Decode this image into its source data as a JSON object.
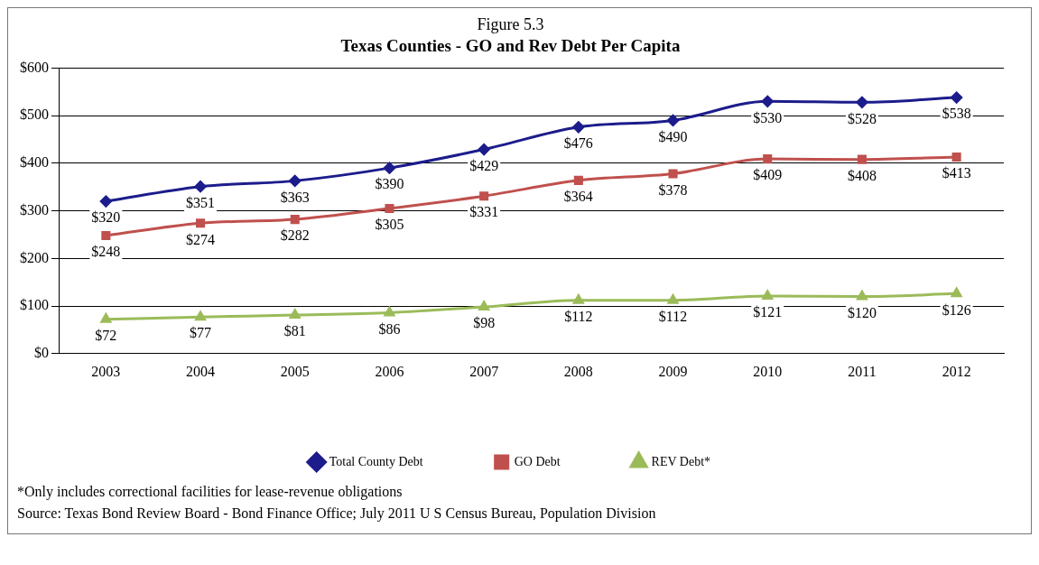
{
  "chart_data": {
    "type": "line",
    "title": "Figure 5.3",
    "subtitle": "Texas Counties - GO and Rev Debt Per Capita",
    "categories": [
      "2003",
      "2004",
      "2005",
      "2006",
      "2007",
      "2008",
      "2009",
      "2010",
      "2011",
      "2012"
    ],
    "series": [
      {
        "name": "Total County Debt",
        "color": "#1c1c8c",
        "marker": "diamond",
        "values": [
          320,
          351,
          363,
          390,
          429,
          476,
          490,
          530,
          528,
          538
        ],
        "value_labels": [
          "$320",
          "$351",
          "$363",
          "$390",
          "$429",
          "$476",
          "$490",
          "$530",
          "$528",
          "$538"
        ]
      },
      {
        "name": "GO Debt",
        "color": "#c0504d",
        "marker": "square",
        "values": [
          248,
          274,
          282,
          305,
          331,
          364,
          378,
          409,
          408,
          413
        ],
        "value_labels": [
          "$248",
          "$274",
          "$282",
          "$305",
          "$331",
          "$364",
          "$378",
          "$409",
          "$408",
          "$413"
        ]
      },
      {
        "name": "REV Debt*",
        "color": "#9bbb59",
        "marker": "triangle",
        "values": [
          72,
          77,
          81,
          86,
          98,
          112,
          112,
          121,
          120,
          126
        ],
        "value_labels": [
          "$72",
          "$77",
          "$81",
          "$86",
          "$98",
          "$112",
          "$112",
          "$121",
          "$120",
          "$126"
        ]
      }
    ],
    "ylim": [
      0,
      600
    ],
    "yticks": [
      {
        "value": 0,
        "label": "$0"
      },
      {
        "value": 100,
        "label": "$100"
      },
      {
        "value": 200,
        "label": "$200"
      },
      {
        "value": 300,
        "label": "$300"
      },
      {
        "value": 400,
        "label": "$400"
      },
      {
        "value": 500,
        "label": "$500"
      },
      {
        "value": 600,
        "label": "$600"
      }
    ],
    "grid": "y",
    "legend": "bottom",
    "line_style": "solid",
    "annotations": [
      "*Only includes correctional facilities for lease-revenue obligations",
      "Source: Texas Bond Review Board - Bond Finance Office; July 2011 U S  Census Bureau, Population Division"
    ]
  }
}
